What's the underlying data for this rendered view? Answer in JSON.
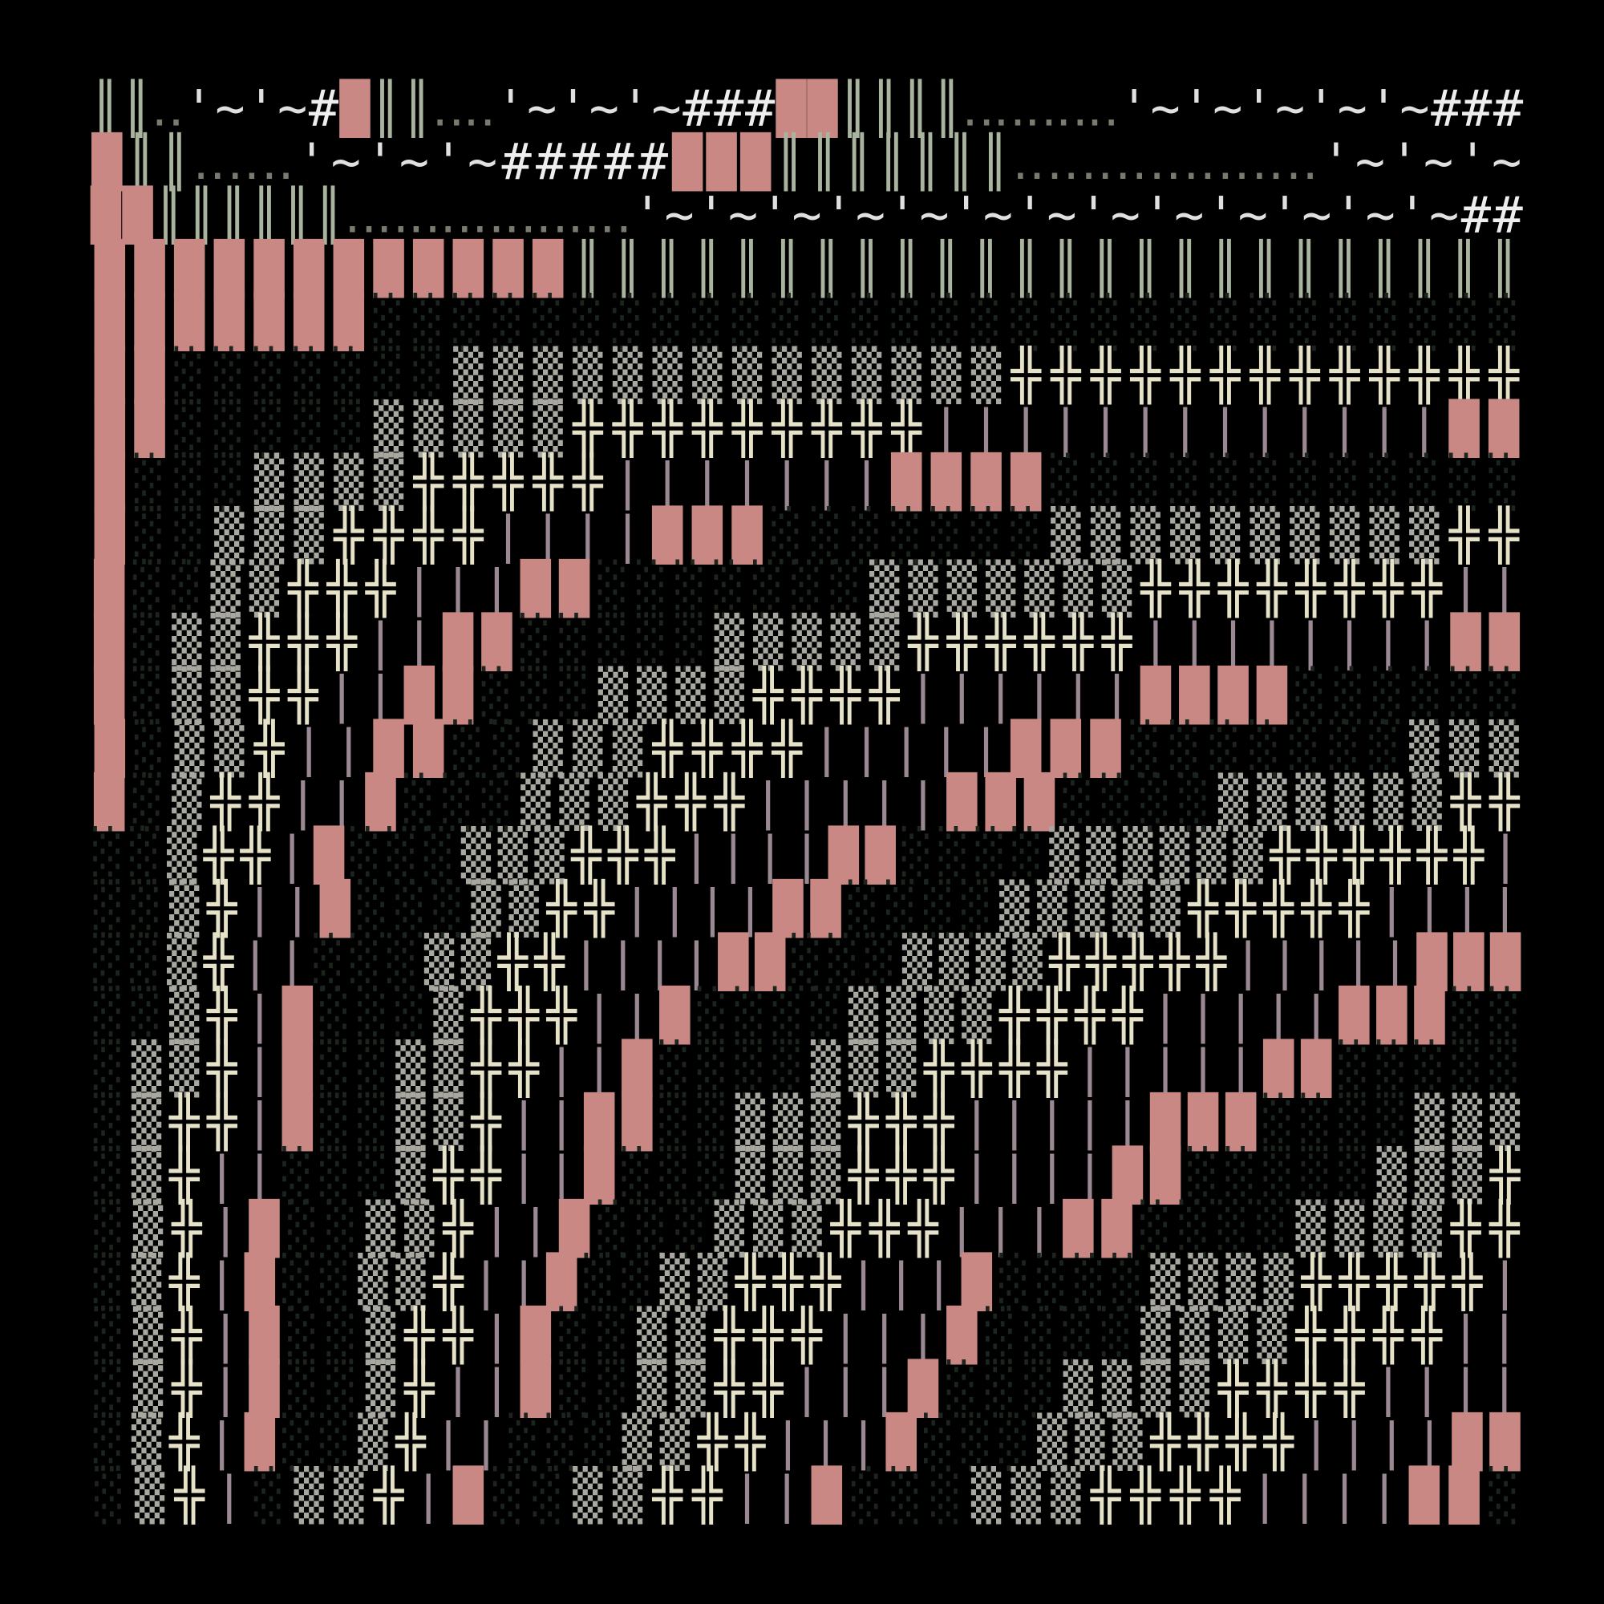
{
  "art": {
    "rows": [
      "║║‥'~'~#█║║‥‥'~'~'~###██║║║║‥‥‥‥‥'~'~'~'~'~###",
      "█║║‥‥‥'~'~'~#####███║║║║║║║‥‥‥‥‥‥‥‥‥'~'~'~",
      "██║║║║║║‥‥‥‥‥‥‥‥‥'~'~'~'~'~'~'~'~'~'~'~'~'~##",
      "████████████║║║║║║║║║║║║║║║║║║║║║║║║",
      "███████░░░░░░░░░░░░░░░░░░░░░░░░░░░░░",
      "██░░░░░░░▒▒▒▒▒▒▒▒▒▒▒▒▒▒╬╬╬╬╬╬╬╬╬╬╬╬╬",
      "██░░░░░▒▒▒▒▒╬╬╬╬╬╬╬╬╬|||||||||||||██",
      "█░░░▒▒▒▒╬╬╬╬╬|||||||████░░░░░░░░░░░░",
      "█░░▒▒▒╬╬╬╬||||███░░░░░░░▒▒▒▒▒▒▒▒▒▒╬╬",
      "█░░▒▒╬╬╬|||██░░░░░░░▒▒▒▒▒▒▒╬╬╬╬╬╬╬╬||",
      "█░▒▒╬╬╬||██░░░░░▒▒▒▒▒╬╬╬╬╬╬||||||||██",
      "█░▒▒╬╬||██░░░▒▒▒▒╬╬╬╬||||||████░░░░░░",
      "█░▒▒╬||██░░▒▒▒╬╬╬╬|||||███░░░░░░░▒▒▒",
      "█░▒╬╬||█░░░▒▒▒╬╬╬|||||███░░░░▒▒▒▒▒▒╬╬",
      "░░▒╬╬|█░░░▒▒▒╬╬╬||||██░░░░▒▒▒▒▒▒╬╬╬╬╬╬|",
      "░░▒╬||█░░░▒▒╬╬||||██░░░░▒▒▒▒▒╬╬╬╬╬||||",
      "░░▒╬||░░░▒▒╬╬||||██░░░▒▒▒▒╬╬╬╬╬|||||███",
      "░░▒╬|█░░░▒╬╬╬||█░░░░▒▒▒▒╬╬╬╬|||||███░░",
      "░▒▒╬|█░░▒▒╬╬||█░░░░▒▒▒╬╬╬╬|||||██░░░░░",
      "░▒╬╬|█░░▒▒╬||██░░▒▒▒╬╬╬|||||███░░░░▒▒▒",
      "░▒╬||░░░▒╬╬||█░░░▒▒▒╬╬╬||||██░░░░░▒▒▒╬",
      "░▒╬|█░░▒▒╬||█░░░▒▒▒╬╬╬|||██░░░░▒▒▒▒╬╬",
      "░▒╬|█░░▒▒╬||█░░▒▒╬╬╬|||█░░░░▒▒▒▒╬╬╬╬╬|",
      "░▒╬|█░░▒╬╬|█░░▒▒╬╬╬|||█░░░░▒▒▒▒╬╬╬╬||",
      "░▒╬|█░░▒╬||█░░▒▒╬╬|||█░░░▒▒▒▒╬╬╬╬||||",
      "░▒╬|█░░▒╬||░░░▒▒╬╬|||█░░░▒▒▒╬╬╬╬||||██",
      "░▒╬|░▒▒╬|█░░▒▒╬╬||█░░░▒▒▒╬╬╬╬||||██░"
    ]
  }
}
